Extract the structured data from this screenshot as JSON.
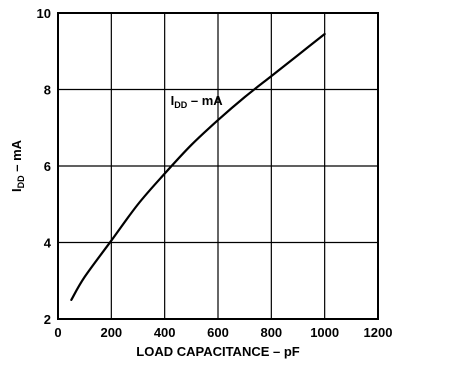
{
  "chart_data": {
    "type": "line",
    "xlabel": "LOAD CAPACITANCE – pF",
    "ylabel": {
      "main": "I",
      "sub": "DD",
      "rest": " – mA"
    },
    "annotation": {
      "main": "I",
      "sub": "DD",
      "rest": " – mA",
      "x": 520,
      "y": 7.6
    },
    "xlim": [
      0,
      1200
    ],
    "ylim": [
      2,
      10
    ],
    "xticks": [
      0,
      200,
      400,
      600,
      800,
      1000,
      1200
    ],
    "yticks": [
      2,
      4,
      6,
      8,
      10
    ],
    "x_tick_labels": [
      "0",
      "200",
      "400",
      "600",
      "800",
      "1000",
      "1200"
    ],
    "y_tick_labels": [
      "2",
      "4",
      "6",
      "8",
      "10"
    ],
    "grid": true,
    "series": [
      {
        "x": [
          50,
          100,
          200,
          300,
          400,
          500,
          600,
          700,
          800,
          900,
          1000
        ],
        "y": [
          2.5,
          3.1,
          4.05,
          5.0,
          5.8,
          6.55,
          7.2,
          7.8,
          8.35,
          8.9,
          9.45
        ]
      }
    ]
  }
}
